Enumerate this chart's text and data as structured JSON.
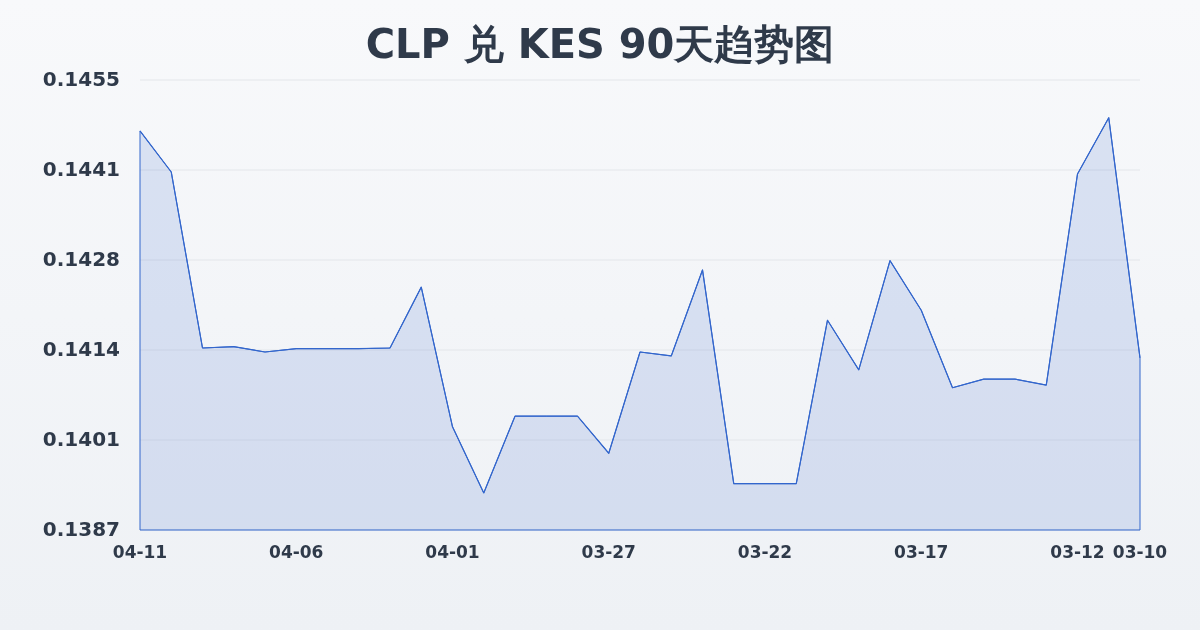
{
  "chart_data": {
    "type": "area",
    "title": "CLP 兑 KES 90天趋势图",
    "categories": [
      "04-11",
      null,
      null,
      null,
      null,
      "04-06",
      null,
      null,
      null,
      null,
      "04-01",
      null,
      null,
      null,
      null,
      "03-27",
      null,
      null,
      null,
      null,
      "03-22",
      null,
      null,
      null,
      null,
      "03-17",
      null,
      null,
      null,
      null,
      "03-12",
      null,
      "03-10"
    ],
    "series": [
      {
        "color": "#3366cc",
        "values": [
          0.14473,
          0.14411,
          0.14145,
          0.14147,
          0.14139,
          0.14144,
          0.14144,
          0.14144,
          0.14145,
          0.14237,
          0.14026,
          0.13926,
          0.14042,
          0.14042,
          0.14042,
          0.13986,
          0.14139,
          0.14133,
          0.14263,
          0.1394,
          0.1394,
          0.1394,
          0.14187,
          0.14112,
          0.14277,
          0.14202,
          0.14085,
          0.14098,
          0.14098,
          0.14089,
          0.14408,
          0.14493,
          0.1413
        ]
      }
    ],
    "ylim": [
      0.1387,
      0.1455
    ],
    "yticks": [
      {
        "value": 0.1387,
        "label": "0.1387"
      },
      {
        "value": 0.14006,
        "label": "0.1401"
      },
      {
        "value": 0.14142,
        "label": "0.1414"
      },
      {
        "value": 0.14278,
        "label": "0.1428"
      },
      {
        "value": 0.14414,
        "label": "0.1441"
      },
      {
        "value": 0.1455,
        "label": "0.1455"
      }
    ],
    "grid": "y"
  }
}
